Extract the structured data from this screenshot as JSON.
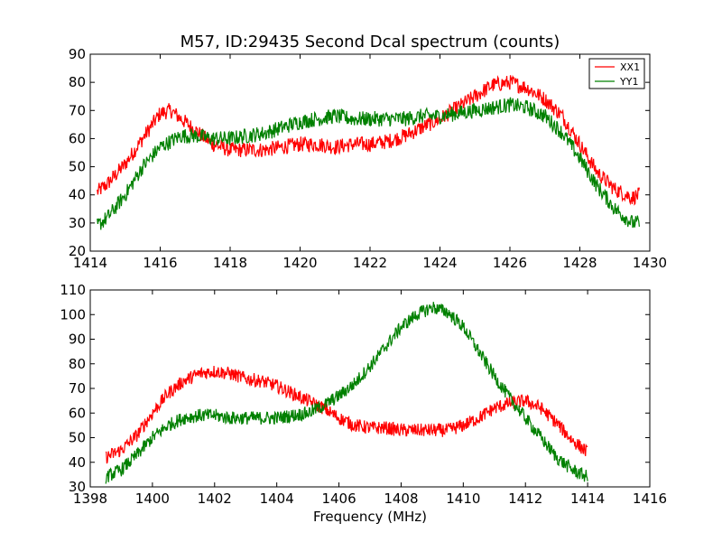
{
  "chart_data": [
    {
      "type": "line",
      "title": "M57, ID:29435 Second Dcal spectrum (counts)",
      "xlabel": "",
      "ylabel": "",
      "xlim": [
        1414,
        1430
      ],
      "ylim": [
        20,
        90
      ],
      "xticks": [
        "1414",
        "1416",
        "1418",
        "1420",
        "1422",
        "1424",
        "1426",
        "1428",
        "1430"
      ],
      "yticks": [
        "20",
        "30",
        "40",
        "50",
        "60",
        "70",
        "80",
        "90"
      ],
      "grid": false,
      "legend": "top-right",
      "series": [
        {
          "name": "XX1",
          "color": "#ff0000",
          "x": [
            1414.2,
            1414.5,
            1415.0,
            1415.5,
            1416.0,
            1416.3,
            1416.6,
            1417.0,
            1417.5,
            1418.0,
            1418.5,
            1419.0,
            1419.5,
            1420.0,
            1420.5,
            1421.0,
            1421.5,
            1422.0,
            1422.5,
            1423.0,
            1423.5,
            1424.0,
            1424.5,
            1425.0,
            1425.5,
            1426.0,
            1426.5,
            1427.0,
            1427.5,
            1428.0,
            1428.5,
            1429.0,
            1429.5,
            1429.7
          ],
          "values": [
            41,
            44,
            51,
            60,
            69,
            70,
            67,
            63,
            58,
            56,
            56,
            56,
            57,
            58,
            58,
            57,
            58,
            58,
            59,
            61,
            64,
            67,
            71,
            75,
            79,
            80,
            78,
            74,
            68,
            58,
            48,
            42,
            39,
            40
          ]
        },
        {
          "name": "YY1",
          "color": "#008000",
          "x": [
            1414.2,
            1414.5,
            1415.0,
            1415.5,
            1416.0,
            1416.3,
            1416.6,
            1417.0,
            1417.5,
            1418.0,
            1418.5,
            1419.0,
            1419.5,
            1420.0,
            1420.5,
            1421.0,
            1421.5,
            1422.0,
            1422.5,
            1423.0,
            1423.5,
            1424.0,
            1424.5,
            1425.0,
            1425.5,
            1426.0,
            1426.5,
            1427.0,
            1427.5,
            1428.0,
            1428.5,
            1429.0,
            1429.5,
            1429.7
          ],
          "values": [
            29,
            32,
            40,
            50,
            57,
            59,
            61,
            61,
            60,
            60,
            61,
            62,
            64,
            66,
            67,
            68,
            67,
            67,
            67,
            67,
            68,
            68,
            69,
            70,
            71,
            72,
            71,
            68,
            62,
            53,
            43,
            35,
            30,
            30
          ]
        }
      ]
    },
    {
      "type": "line",
      "title": "",
      "xlabel": "Frequency (MHz)",
      "ylabel": "",
      "xlim": [
        1398,
        1416
      ],
      "ylim": [
        30,
        110
      ],
      "xticks": [
        "1398",
        "1400",
        "1402",
        "1404",
        "1406",
        "1408",
        "1410",
        "1412",
        "1414",
        "1416"
      ],
      "yticks": [
        "30",
        "40",
        "50",
        "60",
        "70",
        "80",
        "90",
        "100",
        "110"
      ],
      "grid": false,
      "legend": "none",
      "series": [
        {
          "color": "#ff0000",
          "x": [
            1398.5,
            1399.0,
            1399.5,
            1400.0,
            1400.5,
            1401.0,
            1401.5,
            1402.0,
            1402.5,
            1403.0,
            1403.5,
            1404.0,
            1404.5,
            1405.0,
            1405.5,
            1406.0,
            1406.5,
            1407.0,
            1407.5,
            1408.0,
            1408.5,
            1409.0,
            1409.5,
            1410.0,
            1410.5,
            1411.0,
            1411.5,
            1412.0,
            1412.5,
            1413.0,
            1413.5,
            1414.0
          ],
          "values": [
            42,
            45,
            51,
            60,
            68,
            73,
            76,
            77,
            76,
            74,
            73,
            71,
            68,
            65,
            62,
            58,
            55,
            54,
            54,
            53,
            53,
            53,
            53,
            55,
            58,
            62,
            64,
            65,
            62,
            56,
            49,
            44
          ]
        },
        {
          "color": "#008000",
          "x": [
            1398.5,
            1399.0,
            1399.5,
            1400.0,
            1400.5,
            1401.0,
            1401.5,
            1402.0,
            1402.5,
            1403.0,
            1403.5,
            1404.0,
            1404.5,
            1405.0,
            1405.5,
            1406.0,
            1406.5,
            1407.0,
            1407.5,
            1408.0,
            1408.5,
            1409.0,
            1409.5,
            1410.0,
            1410.5,
            1411.0,
            1411.5,
            1412.0,
            1412.5,
            1413.0,
            1413.5,
            1414.0
          ],
          "values": [
            34,
            37,
            43,
            50,
            55,
            58,
            59,
            59,
            58,
            58,
            58,
            58,
            59,
            60,
            63,
            67,
            72,
            79,
            87,
            95,
            100,
            103,
            101,
            95,
            85,
            75,
            66,
            58,
            50,
            42,
            37,
            34
          ]
        }
      ]
    }
  ]
}
